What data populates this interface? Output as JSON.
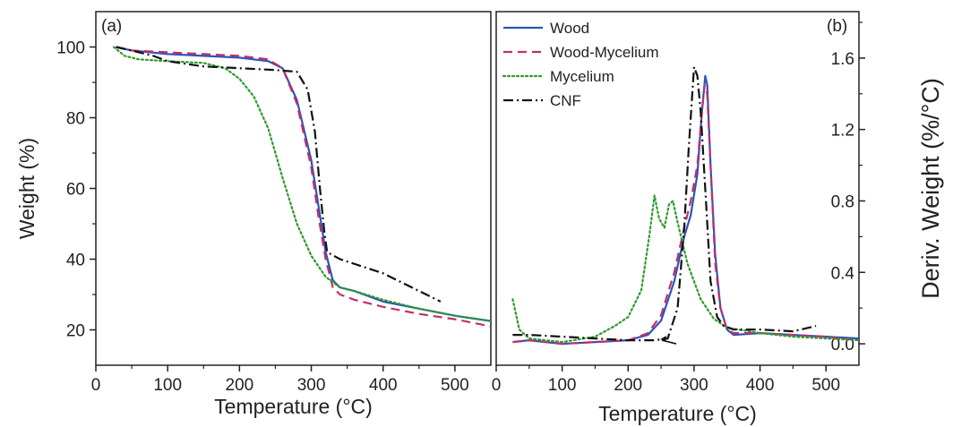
{
  "figure": {
    "colors": {
      "Wood": "#2b55b8",
      "Wood-Mycelium": "#c0306a",
      "Mycelium": "#2e9a2e",
      "CNF": "#111111",
      "axis": "#222222"
    }
  },
  "chart_data": [
    {
      "type": "line",
      "panel_label": "(a)",
      "xlabel": "Temperature (°C)",
      "ylabel": "Weight (%)",
      "xlim": [
        0,
        550
      ],
      "ylim": [
        10,
        110
      ],
      "xticks": [
        0,
        100,
        200,
        300,
        400,
        500
      ],
      "yticks": [
        20,
        40,
        60,
        80,
        100
      ],
      "xtick_labels": [
        "0",
        "100",
        "200",
        "300",
        "400",
        "500"
      ],
      "ytick_labels": [
        "20",
        "40",
        "60",
        "80",
        "100"
      ],
      "grid": false,
      "series": [
        {
          "name": "Wood",
          "color": "#2b55b8",
          "dash": "solid",
          "points": [
            [
              28,
              100
            ],
            [
              50,
              99
            ],
            [
              100,
              98
            ],
            [
              150,
              97.5
            ],
            [
              200,
              97
            ],
            [
              240,
              96
            ],
            [
              260,
              94
            ],
            [
              280,
              85
            ],
            [
              300,
              68
            ],
            [
              310,
              55
            ],
            [
              320,
              42
            ],
            [
              330,
              34
            ],
            [
              340,
              32
            ],
            [
              360,
              31
            ],
            [
              400,
              28
            ],
            [
              450,
              26
            ],
            [
              500,
              24
            ],
            [
              550,
              22.5
            ]
          ]
        },
        {
          "name": "Wood-Mycelium",
          "color": "#c0306a",
          "dash": "dashed",
          "points": [
            [
              28,
              100
            ],
            [
              50,
              99
            ],
            [
              100,
              98.5
            ],
            [
              150,
              98
            ],
            [
              200,
              97.5
            ],
            [
              240,
              96.5
            ],
            [
              260,
              94
            ],
            [
              280,
              84
            ],
            [
              300,
              66
            ],
            [
              310,
              52
            ],
            [
              320,
              40
            ],
            [
              330,
              32
            ],
            [
              340,
              30
            ],
            [
              360,
              28.5
            ],
            [
              400,
              26.5
            ],
            [
              450,
              24.5
            ],
            [
              500,
              23
            ],
            [
              550,
              21
            ]
          ]
        },
        {
          "name": "Mycelium",
          "color": "#2e9a2e",
          "dash": "dotted",
          "points": [
            [
              25,
              100
            ],
            [
              40,
              97.5
            ],
            [
              60,
              96.5
            ],
            [
              100,
              96
            ],
            [
              150,
              95.5
            ],
            [
              180,
              94
            ],
            [
              200,
              91
            ],
            [
              220,
              86
            ],
            [
              240,
              77
            ],
            [
              260,
              63
            ],
            [
              280,
              50
            ],
            [
              300,
              41
            ],
            [
              320,
              35
            ],
            [
              340,
              32
            ],
            [
              360,
              31
            ],
            [
              400,
              28.5
            ],
            [
              450,
              26
            ],
            [
              500,
              24
            ],
            [
              550,
              22.5
            ]
          ]
        },
        {
          "name": "CNF",
          "color": "#111111",
          "dash": "dashdot",
          "points": [
            [
              28,
              100
            ],
            [
              50,
              99
            ],
            [
              80,
              97.5
            ],
            [
              100,
              96
            ],
            [
              150,
              94.5
            ],
            [
              200,
              94
            ],
            [
              250,
              93.5
            ],
            [
              280,
              93
            ],
            [
              295,
              88
            ],
            [
              305,
              76
            ],
            [
              312,
              60
            ],
            [
              318,
              48
            ],
            [
              322,
              42
            ],
            [
              340,
              40
            ],
            [
              400,
              36
            ],
            [
              480,
              28
            ]
          ]
        }
      ]
    },
    {
      "type": "line",
      "panel_label": "(b)",
      "xlabel": "Temperature (°C)",
      "ylabel": "Deriv. Weight (%/°C)",
      "xlim": [
        0,
        550
      ],
      "ylim": [
        -0.12,
        1.86
      ],
      "xticks": [
        0,
        100,
        200,
        300,
        400,
        500
      ],
      "yticks": [
        0.0,
        0.4,
        0.8,
        1.2,
        1.6
      ],
      "xtick_labels": [
        "0",
        "100",
        "200",
        "300",
        "400",
        "500"
      ],
      "ytick_labels": [
        "0.0",
        "0.4",
        "0.8",
        "1.2",
        "1.6"
      ],
      "grid": false,
      "legend_position": "top-left",
      "series": [
        {
          "name": "Wood",
          "color": "#2b55b8",
          "dash": "solid",
          "points": [
            [
              25,
              0.01
            ],
            [
              50,
              0.02
            ],
            [
              100,
              0.0
            ],
            [
              150,
              0.01
            ],
            [
              200,
              0.02
            ],
            [
              230,
              0.05
            ],
            [
              250,
              0.13
            ],
            [
              270,
              0.35
            ],
            [
              285,
              0.6
            ],
            [
              295,
              0.72
            ],
            [
              305,
              0.95
            ],
            [
              312,
              1.3
            ],
            [
              317,
              1.5
            ],
            [
              320,
              1.45
            ],
            [
              325,
              1.0
            ],
            [
              332,
              0.5
            ],
            [
              340,
              0.2
            ],
            [
              350,
              0.08
            ],
            [
              360,
              0.05
            ],
            [
              400,
              0.06
            ],
            [
              450,
              0.05
            ],
            [
              500,
              0.04
            ],
            [
              550,
              0.03
            ]
          ]
        },
        {
          "name": "Wood-Mycelium",
          "color": "#c0306a",
          "dash": "dashed",
          "points": [
            [
              25,
              0.01
            ],
            [
              50,
              0.02
            ],
            [
              100,
              0.0
            ],
            [
              150,
              0.01
            ],
            [
              200,
              0.02
            ],
            [
              230,
              0.06
            ],
            [
              250,
              0.16
            ],
            [
              270,
              0.4
            ],
            [
              285,
              0.65
            ],
            [
              295,
              0.8
            ],
            [
              305,
              1.0
            ],
            [
              312,
              1.3
            ],
            [
              316,
              1.45
            ],
            [
              320,
              1.4
            ],
            [
              325,
              1.0
            ],
            [
              332,
              0.45
            ],
            [
              340,
              0.2
            ],
            [
              350,
              0.08
            ],
            [
              360,
              0.06
            ],
            [
              400,
              0.06
            ],
            [
              450,
              0.05
            ],
            [
              500,
              0.04
            ],
            [
              550,
              0.02
            ]
          ]
        },
        {
          "name": "Mycelium",
          "color": "#2e9a2e",
          "dash": "dotted",
          "points": [
            [
              25,
              0.25
            ],
            [
              35,
              0.08
            ],
            [
              50,
              0.03
            ],
            [
              100,
              0.01
            ],
            [
              150,
              0.04
            ],
            [
              180,
              0.1
            ],
            [
              200,
              0.15
            ],
            [
              220,
              0.3
            ],
            [
              232,
              0.6
            ],
            [
              240,
              0.83
            ],
            [
              247,
              0.7
            ],
            [
              255,
              0.65
            ],
            [
              262,
              0.78
            ],
            [
              268,
              0.8
            ],
            [
              275,
              0.68
            ],
            [
              290,
              0.45
            ],
            [
              310,
              0.25
            ],
            [
              330,
              0.14
            ],
            [
              350,
              0.09
            ],
            [
              400,
              0.06
            ],
            [
              450,
              0.04
            ],
            [
              500,
              0.03
            ],
            [
              550,
              0.02
            ]
          ]
        },
        {
          "name": "CNF",
          "color": "#111111",
          "dash": "dashdot",
          "points": [
            [
              25,
              0.05
            ],
            [
              50,
              0.05
            ],
            [
              100,
              0.04
            ],
            [
              150,
              0.03
            ],
            [
              200,
              0.02
            ],
            [
              240,
              0.02
            ],
            [
              260,
              0.03
            ],
            [
              275,
              0.2
            ],
            [
              285,
              0.65
            ],
            [
              292,
              1.1
            ],
            [
              300,
              1.55
            ],
            [
              305,
              1.5
            ],
            [
              310,
              1.3
            ],
            [
              318,
              0.8
            ],
            [
              325,
              0.35
            ],
            [
              335,
              0.15
            ],
            [
              345,
              0.1
            ],
            [
              360,
              0.08
            ],
            [
              400,
              0.08
            ],
            [
              450,
              0.07
            ],
            [
              485,
              0.1
            ]
          ]
        }
      ]
    }
  ]
}
